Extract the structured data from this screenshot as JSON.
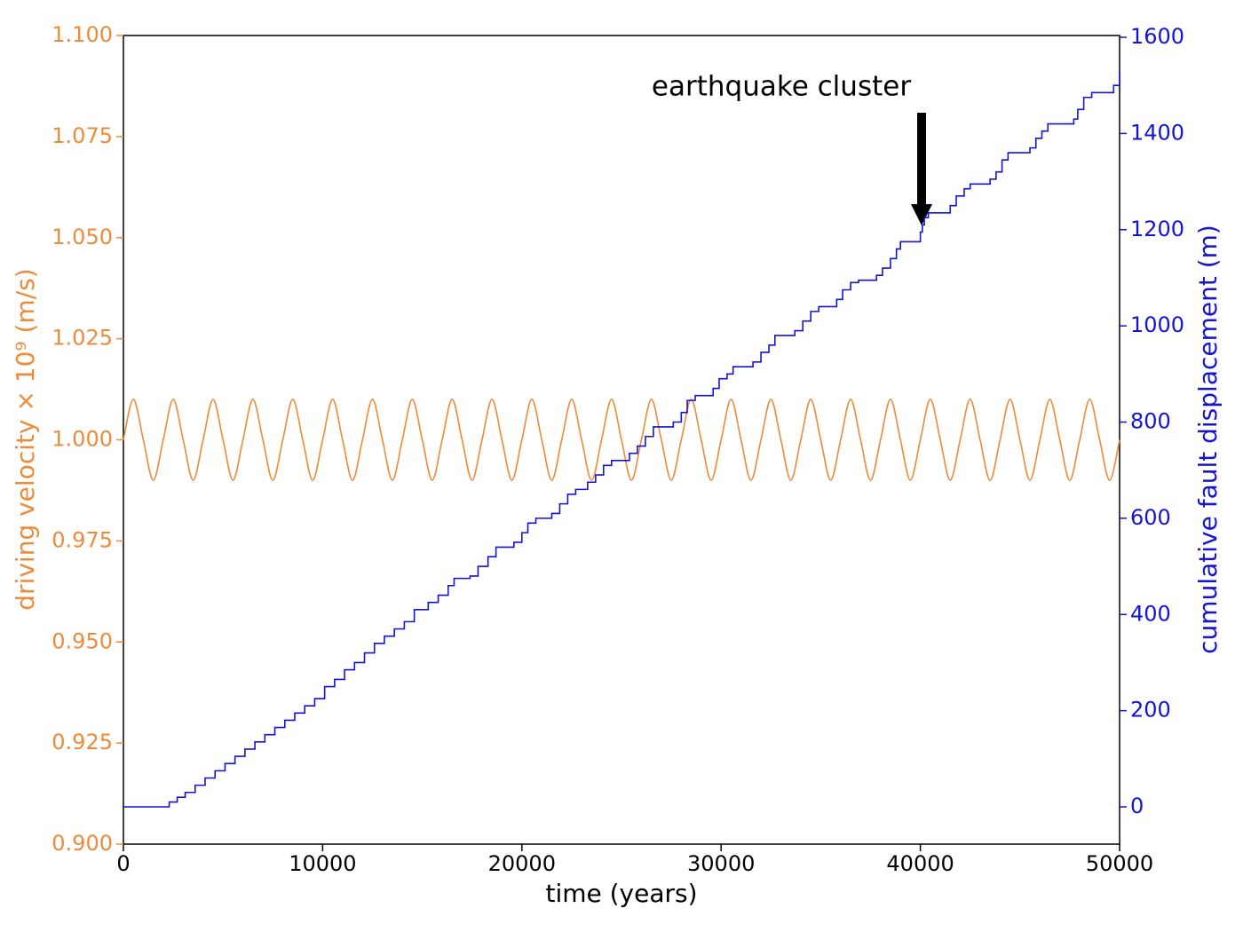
{
  "chart_data": {
    "type": "line",
    "xlabel": "time (years)",
    "ylabel": "driving velocity × 10⁹ (m/s)",
    "y2label": "cumulative fault displacement (m)",
    "annotation": "earthquake cluster",
    "xlim": [
      0,
      50000
    ],
    "xticks": [
      0,
      10000,
      20000,
      30000,
      40000,
      50000
    ],
    "ylim": [
      0.9,
      1.1
    ],
    "yticks": [
      {
        "value": 0.9,
        "label": "0.900"
      },
      {
        "value": 0.925,
        "label": "0.925"
      },
      {
        "value": 0.95,
        "label": "0.950"
      },
      {
        "value": 0.975,
        "label": "0.975"
      },
      {
        "value": 1.0,
        "label": "1.000"
      },
      {
        "value": 1.025,
        "label": "1.025"
      },
      {
        "value": 1.05,
        "label": "1.050"
      },
      {
        "value": 1.075,
        "label": "1.075"
      },
      {
        "value": 1.1,
        "label": "1.100"
      }
    ],
    "y2lim": [
      -77.5,
      1603.7
    ],
    "y2ticks": [
      0,
      200,
      400,
      600,
      800,
      1000,
      1200,
      1400,
      1600
    ],
    "series": [
      {
        "color": "#ed8b3b",
        "axis": "y",
        "smooth": true,
        "x": [
          0,
          500,
          1000,
          1500,
          2000,
          2500,
          3000,
          3500,
          4000,
          4500,
          5000,
          5500,
          6000,
          6500,
          7000,
          7500,
          8000,
          8500,
          9000,
          9500,
          10000,
          10500,
          11000,
          11500,
          12000,
          12500,
          13000,
          13500,
          14000,
          14500,
          15000,
          15500,
          16000,
          16500,
          17000,
          17500,
          18000,
          18500,
          19000,
          19500,
          20000,
          20500,
          21000,
          21500,
          22000,
          22500,
          23000,
          23500,
          24000,
          24500,
          25000,
          25500,
          26000,
          26500,
          27000,
          27500,
          28000,
          28500,
          29000,
          29500,
          30000,
          30500,
          31000,
          31500,
          32000,
          32500,
          33000,
          33500,
          34000,
          34500,
          35000,
          35500,
          36000,
          36500,
          37000,
          37500,
          38000,
          38500,
          39000,
          39500,
          40000,
          40500,
          41000,
          41500,
          42000,
          42500,
          43000,
          43500,
          44000,
          44500,
          45000,
          45500,
          46000,
          46500,
          47000,
          47500,
          48000,
          48500,
          49000,
          49500,
          50000
        ],
        "values": [
          1,
          1.01,
          1,
          0.99,
          1,
          1.01,
          1,
          0.99,
          1,
          1.01,
          1,
          0.99,
          1,
          1.01,
          1,
          0.99,
          1,
          1.01,
          1,
          0.99,
          1,
          1.01,
          1,
          0.99,
          1,
          1.01,
          1,
          0.99,
          1,
          1.01,
          1,
          0.99,
          1,
          1.01,
          1,
          0.99,
          1,
          1.01,
          1,
          0.99,
          1,
          1.01,
          1,
          0.99,
          1,
          1.01,
          1,
          0.99,
          1,
          1.01,
          1,
          0.99,
          1,
          1.01,
          1,
          0.99,
          1,
          1.01,
          1,
          0.99,
          1,
          1.01,
          1,
          0.99,
          1,
          1.01,
          1,
          0.99,
          1,
          1.01,
          1,
          0.99,
          1,
          1.01,
          1,
          0.99,
          1,
          1.01,
          1,
          0.99,
          1,
          1.01,
          1,
          0.99,
          1,
          1.01,
          1,
          0.99,
          1,
          1.01,
          1,
          0.99,
          1,
          1.01,
          1,
          0.99,
          1,
          1.01,
          1,
          0.99,
          1
        ]
      },
      {
        "color": "#1414d2",
        "axis": "y2",
        "step": true,
        "x": [
          0,
          2300,
          2700,
          3100,
          3600,
          4100,
          4600,
          5100,
          5600,
          6100,
          6600,
          7100,
          7600,
          8100,
          8600,
          9100,
          9600,
          10100,
          10600,
          11100,
          11600,
          12100,
          12600,
          13100,
          13600,
          14100,
          14600,
          15300,
          15800,
          16300,
          16600,
          17400,
          17800,
          18300,
          18700,
          19600,
          20000,
          20300,
          20700,
          21500,
          21900,
          22300,
          22700,
          23300,
          23700,
          24100,
          24500,
          25400,
          25800,
          26200,
          26600,
          27600,
          28000,
          28300,
          28700,
          29600,
          29900,
          30300,
          30600,
          31600,
          32000,
          32400,
          32700,
          33700,
          34100,
          34500,
          34900,
          35800,
          36100,
          36500,
          36900,
          37800,
          38100,
          38500,
          38800,
          39000,
          40000,
          40100,
          40200,
          40400,
          41500,
          41800,
          42200,
          42500,
          43500,
          43800,
          44100,
          44400,
          45500,
          45800,
          46100,
          46400,
          47700,
          47900,
          48200,
          48600,
          49700,
          50000
        ],
        "values": [
          0,
          10,
          20,
          30,
          45,
          60,
          75,
          90,
          105,
          120,
          135,
          150,
          165,
          180,
          195,
          210,
          225,
          250,
          265,
          285,
          300,
          320,
          340,
          355,
          370,
          385,
          410,
          425,
          440,
          460,
          475,
          480,
          500,
          520,
          540,
          550,
          570,
          590,
          600,
          610,
          630,
          650,
          660,
          675,
          690,
          710,
          720,
          735,
          750,
          770,
          790,
          800,
          820,
          845,
          855,
          870,
          890,
          900,
          915,
          925,
          945,
          960,
          980,
          990,
          1010,
          1030,
          1040,
          1055,
          1075,
          1090,
          1095,
          1105,
          1120,
          1140,
          1160,
          1175,
          1195,
          1210,
          1225,
          1235,
          1250,
          1270,
          1285,
          1295,
          1305,
          1320,
          1345,
          1360,
          1370,
          1390,
          1405,
          1420,
          1430,
          1450,
          1475,
          1485,
          1500,
          1530
        ]
      }
    ]
  }
}
